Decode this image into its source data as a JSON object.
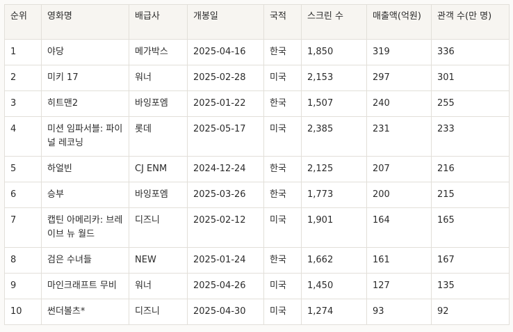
{
  "table": {
    "headers": [
      "순위",
      "영화명",
      "배급사",
      "개봉일",
      "국적",
      "스크린 수",
      "매출액(억원)",
      "관객 수(만 명)"
    ],
    "rows": [
      [
        "1",
        "야당",
        "메가박스",
        "2025-04-16",
        "한국",
        "1,850",
        "319",
        "336"
      ],
      [
        "2",
        "미키 17",
        "워너",
        "2025-02-28",
        "미국",
        "2,153",
        "297",
        "301"
      ],
      [
        "3",
        "히트맨2",
        "바잉포엠",
        "2025-01-22",
        "한국",
        "1,507",
        "240",
        "255"
      ],
      [
        "4",
        "미션 임파서블: 파이널 레코닝",
        "롯데",
        "2025-05-17",
        "미국",
        "2,385",
        "231",
        "233"
      ],
      [
        "5",
        "하얼빈",
        "CJ ENM",
        "2024-12-24",
        "한국",
        "2,125",
        "207",
        "216"
      ],
      [
        "6",
        "승부",
        "바잉포엠",
        "2025-03-26",
        "한국",
        "1,773",
        "200",
        "215"
      ],
      [
        "7",
        "캡틴 아메리카: 브레이브 뉴 월드",
        "디즈니",
        "2025-02-12",
        "미국",
        "1,901",
        "164",
        "165"
      ],
      [
        "8",
        "검은 수녀들",
        "NEW",
        "2025-01-24",
        "한국",
        "1,662",
        "161",
        "167"
      ],
      [
        "9",
        "마인크래프트 무비",
        "워너",
        "2025-04-26",
        "미국",
        "1,450",
        "127",
        "135"
      ],
      [
        "10",
        "썬더볼츠*",
        "디즈니",
        "2025-04-30",
        "미국",
        "1,274",
        "93",
        "92"
      ]
    ]
  }
}
